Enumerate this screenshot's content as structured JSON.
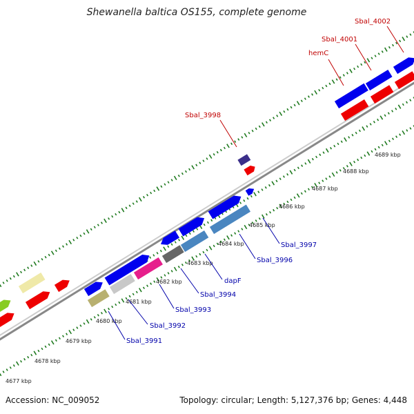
{
  "title": "Shewanella baltica OS155, complete genome",
  "footer": {
    "accession": "Accession: NC_009052",
    "summary": "Topology: circular; Length: 5,127,376 bp; Genes: 4,448"
  },
  "colors": {
    "forward_cds": "#0000ee",
    "reverse_cds": "#ee0000",
    "backbone": "#999999",
    "ticks": "#1f7a1f",
    "red_label": "#c00000",
    "blue_label": "#0000aa"
  },
  "scale_labels": [
    "4677 kbp",
    "4678 kbp",
    "4679 kbp",
    "4680 kbp",
    "4681 kbp",
    "4682 kbp",
    "4683 kbp",
    "4684 kbp",
    "4685 kbp",
    "4686 kbp",
    "4687 kbp",
    "4688 kbp",
    "4689 kbp"
  ],
  "top_gene_labels": [
    "Sbal_3998",
    "hemC",
    "Sbal_4001",
    "Sbal_4002"
  ],
  "bottom_gene_labels": [
    "Sbal_3991",
    "Sbal_3992",
    "Sbal_3993",
    "Sbal_3994",
    "dapF",
    "Sbal_3996",
    "Sbal_3997"
  ]
}
